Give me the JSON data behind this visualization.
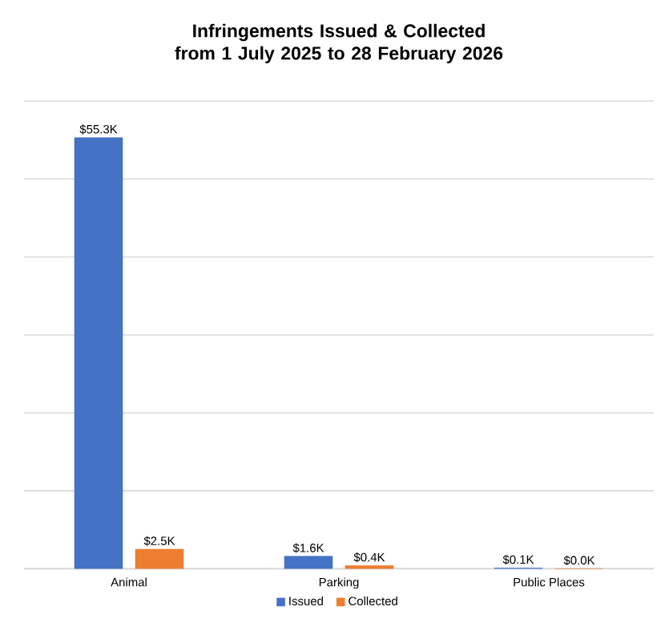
{
  "chart_data": {
    "type": "bar",
    "title": "Infringements Issued & Collected from 1 July 2025 to 28 February 2026",
    "categories": [
      "Animal",
      "Parking",
      "Public Places"
    ],
    "series": [
      {
        "name": "Issued",
        "color": "#4472c4",
        "values": [
          55.3,
          1.6,
          0.1
        ],
        "value_labels": [
          "$55.3K",
          "$1.6K",
          "$0.1K"
        ]
      },
      {
        "name": "Collected",
        "color": "#ed7d31",
        "values": [
          2.5,
          0.4,
          0.0
        ],
        "value_labels": [
          "$2.5K",
          "$0.4K",
          "$0.0K"
        ]
      }
    ],
    "ylim": [
      0,
      60
    ],
    "yticks": [
      {
        "value": 0,
        "label": null
      },
      {
        "value": 10,
        "label": null
      },
      {
        "value": 20,
        "label": null
      },
      {
        "value": 30,
        "label": null
      },
      {
        "value": 40,
        "label": null
      },
      {
        "value": 50,
        "label": null
      },
      {
        "value": 60,
        "label": null
      }
    ],
    "grid": "y",
    "legend": "bottom",
    "tick_labels": "x"
  }
}
